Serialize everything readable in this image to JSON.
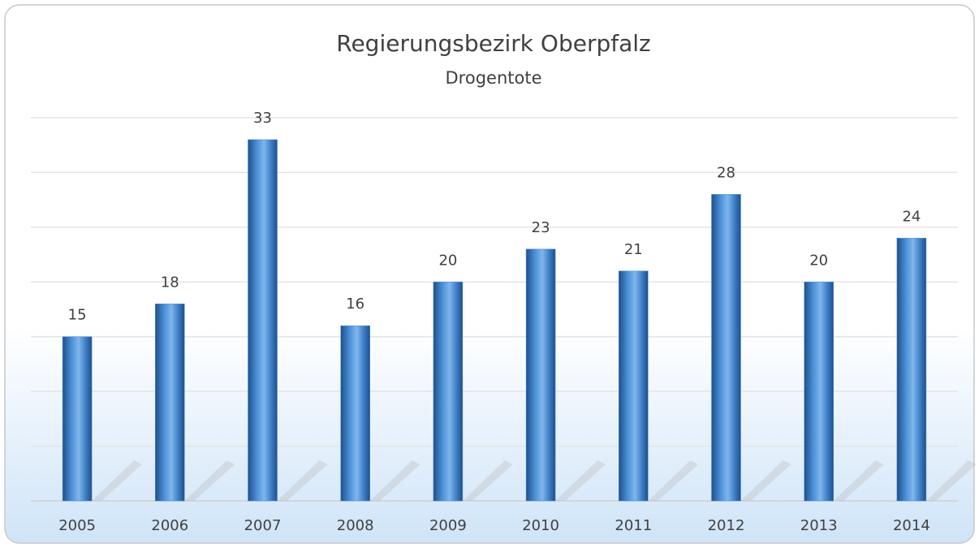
{
  "chart_data": {
    "type": "bar",
    "title": "Regierungsbezirk Oberpfalz",
    "subtitle": "Drogentote",
    "categories": [
      "2005",
      "2006",
      "2007",
      "2008",
      "2009",
      "2010",
      "2011",
      "2012",
      "2013",
      "2014"
    ],
    "values": [
      15,
      18,
      33,
      16,
      20,
      23,
      21,
      28,
      20,
      24
    ],
    "color": "#4a8fd6",
    "ylim": [
      0,
      35
    ],
    "yticks": [
      0,
      5,
      10,
      15,
      20,
      25,
      30,
      35
    ],
    "grid": true
  }
}
